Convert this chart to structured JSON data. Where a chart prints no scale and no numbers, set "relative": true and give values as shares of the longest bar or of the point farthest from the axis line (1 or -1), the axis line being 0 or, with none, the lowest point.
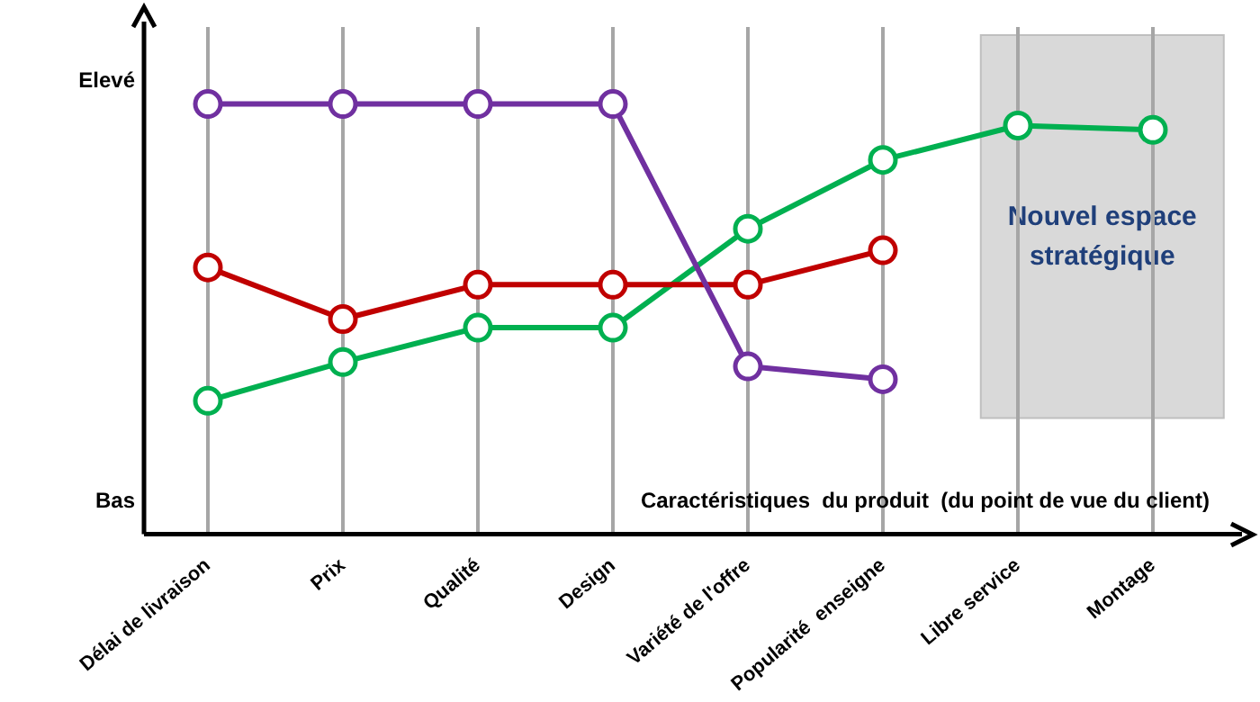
{
  "chart_data": {
    "type": "line",
    "relative": true,
    "xlabel": "Caractéristiques  du produit  (du point de vue du client)",
    "categories": [
      "Délai de livraison",
      "Prix",
      "Qualité",
      "Design",
      "Variété de l'offre",
      "Popularité  enseigne",
      "Libre service",
      "Montage"
    ],
    "series": [
      {
        "color": "#7030a0",
        "values": [
          1,
          1,
          1,
          1,
          0.39,
          0.36,
          null,
          null
        ]
      },
      {
        "color": "#c00000",
        "values": [
          0.62,
          0.5,
          0.58,
          0.58,
          0.58,
          0.66,
          null,
          null
        ]
      },
      {
        "color": "#00b050",
        "values": [
          0.31,
          0.4,
          0.48,
          0.48,
          0.71,
          0.87,
          0.95,
          0.94
        ]
      }
    ],
    "bands": [
      {
        "axis": "x",
        "from": "Libre service",
        "to": "Montage",
        "label": "Nouvel espace stratégique",
        "color": "#d9d9d9"
      }
    ],
    "annotations": [
      "Elevé",
      "Bas"
    ],
    "grid": "x",
    "marker": "circle",
    "line_style": "solid",
    "legend": false
  }
}
